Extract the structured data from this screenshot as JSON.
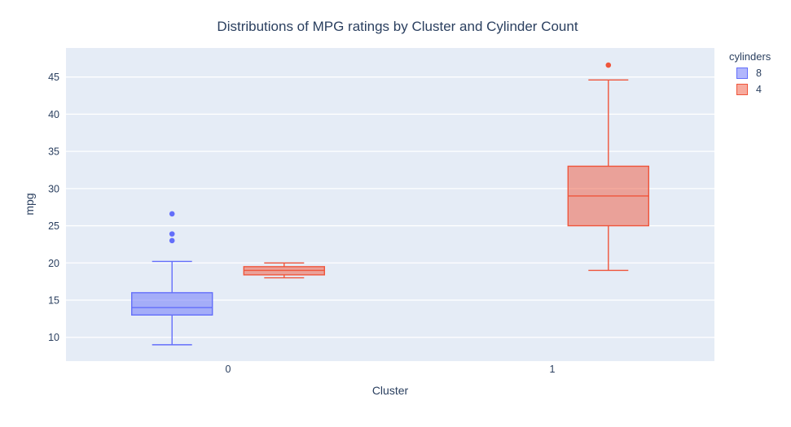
{
  "title": "Distributions of MPG ratings by Cluster and Cylinder Count",
  "colors": {
    "text": "#2a3f5f",
    "paper_bg": "#ffffff",
    "plot_bg": "#e5ecf6",
    "grid": "#ffffff",
    "series_8": "#636efa",
    "series_4": "#ef553b"
  },
  "legend": {
    "title": "cylinders",
    "items": [
      {
        "label": "8",
        "color": "#636efa"
      },
      {
        "label": "4",
        "color": "#ef553b"
      }
    ]
  },
  "chart_data": {
    "type": "box",
    "title": "Distributions of MPG ratings by Cluster and Cylinder Count",
    "xlabel": "Cluster",
    "ylabel": "mpg",
    "categories": [
      "0",
      "1"
    ],
    "yticks": [
      10,
      15,
      20,
      25,
      30,
      35,
      40,
      45
    ],
    "ylim": [
      6.8,
      48.9
    ],
    "grid": true,
    "boxmode": "group",
    "legend_position": "top-right",
    "series": [
      {
        "name": "8",
        "color": "#636efa",
        "boxes": [
          {
            "category": "0",
            "lower_whisker": 9.0,
            "q1": 13.0,
            "median": 14.0,
            "q3": 16.0,
            "upper_whisker": 20.2,
            "outliers": [
              23.0,
              23.9,
              26.6
            ]
          }
        ]
      },
      {
        "name": "4",
        "color": "#ef553b",
        "boxes": [
          {
            "category": "0",
            "lower_whisker": 18.0,
            "q1": 18.4,
            "median": 19.0,
            "q3": 19.5,
            "upper_whisker": 20.0,
            "outliers": []
          },
          {
            "category": "1",
            "lower_whisker": 19.0,
            "q1": 25.0,
            "median": 29.0,
            "q3": 33.0,
            "upper_whisker": 44.6,
            "outliers": [
              46.6
            ]
          }
        ]
      }
    ]
  }
}
